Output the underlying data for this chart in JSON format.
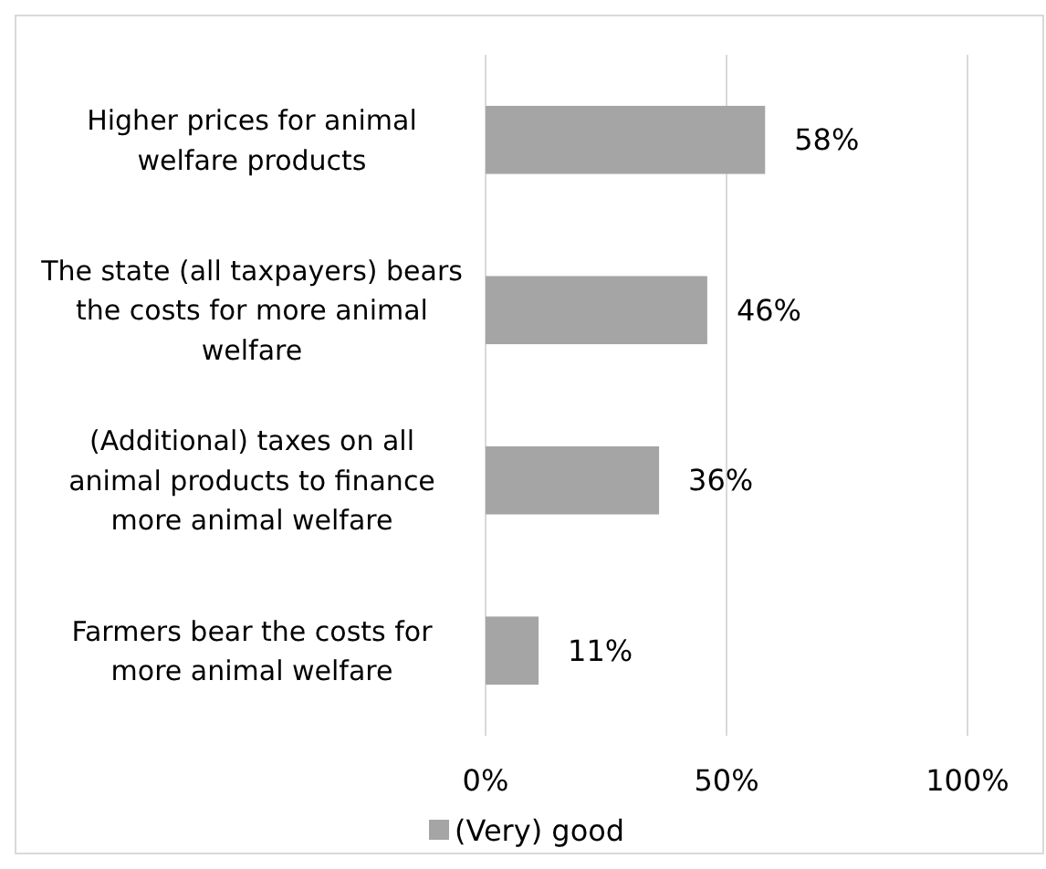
{
  "chart_data": {
    "type": "bar",
    "orientation": "horizontal",
    "categories": [
      "Higher prices for animal welfare products",
      "The state (all taxpayers) bears the costs for more animal welfare",
      "(Additional) taxes on all animal products to finance more animal welfare",
      "Farmers bear the costs for more animal welfare"
    ],
    "series": [
      {
        "name": "(Very) good",
        "color": "#a5a5a5",
        "values": [
          58,
          46,
          36,
          11
        ],
        "value_labels": [
          "58%",
          "46%",
          "36%",
          "11%"
        ]
      }
    ],
    "xlim": [
      0,
      100
    ],
    "xticks": [
      {
        "value": 0,
        "label": "0%"
      },
      {
        "value": 50,
        "label": "50%"
      },
      {
        "value": 100,
        "label": "100%"
      }
    ],
    "grid": "x",
    "legend": "bottom"
  }
}
